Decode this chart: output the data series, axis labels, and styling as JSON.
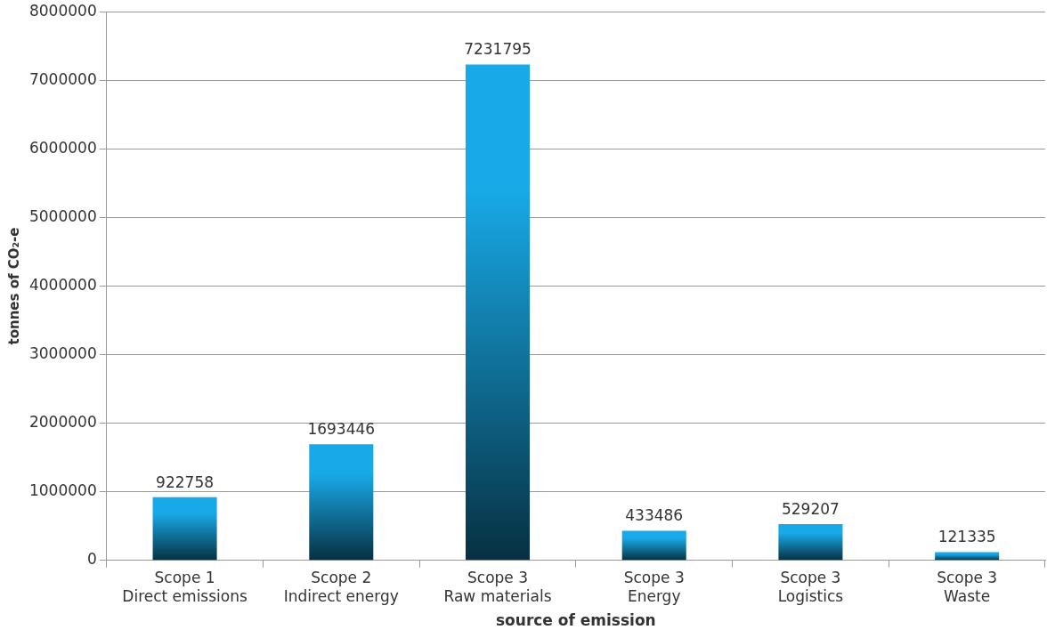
{
  "chart_data": {
    "type": "bar",
    "xlabel": "source of emission",
    "ylabel": "tonnes of CO₂-e",
    "categories": [
      "Scope 1\nDirect emissions",
      "Scope 2\nIndirect energy",
      "Scope 3\nRaw materials",
      "Scope 3\nEnergy",
      "Scope 3\nLogistics",
      "Scope 3\nWaste"
    ],
    "values": [
      922758,
      1693446,
      7231795,
      433486,
      529207,
      121335
    ],
    "color": "#18aae8",
    "ylim": [
      0,
      8000000
    ],
    "yticks": [
      0,
      1000000,
      2000000,
      3000000,
      4000000,
      5000000,
      6000000,
      7000000,
      8000000
    ],
    "grid": "y",
    "legend": false,
    "data_labels": true
  }
}
